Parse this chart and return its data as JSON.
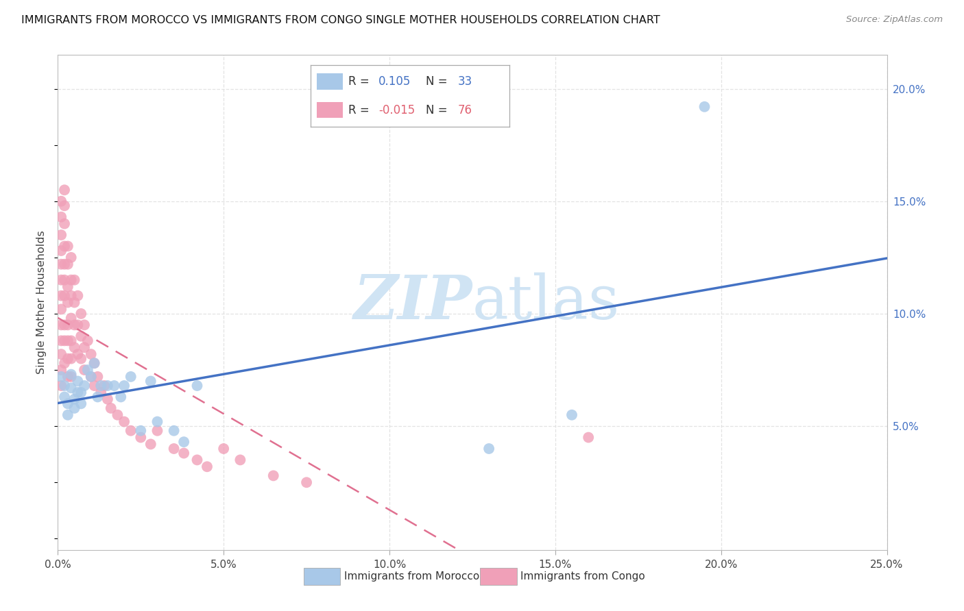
{
  "title": "IMMIGRANTS FROM MOROCCO VS IMMIGRANTS FROM CONGO SINGLE MOTHER HOUSEHOLDS CORRELATION CHART",
  "source": "Source: ZipAtlas.com",
  "ylabel_left": "Single Mother Households",
  "xlim": [
    0.0,
    0.25
  ],
  "ylim": [
    -0.005,
    0.215
  ],
  "xticks": [
    0.0,
    0.05,
    0.1,
    0.15,
    0.2,
    0.25
  ],
  "yticks_right": [
    0.05,
    0.1,
    0.15,
    0.2
  ],
  "background_color": "#ffffff",
  "morocco_color": "#a8c8e8",
  "congo_color": "#f0a0b8",
  "trend_blue_color": "#4472c4",
  "trend_pink_color": "#e07090",
  "watermark_color": "#d0e4f4",
  "morocco_scatter_x": [
    0.001,
    0.002,
    0.002,
    0.003,
    0.003,
    0.004,
    0.004,
    0.005,
    0.005,
    0.006,
    0.006,
    0.007,
    0.007,
    0.008,
    0.009,
    0.01,
    0.011,
    0.012,
    0.013,
    0.015,
    0.017,
    0.019,
    0.02,
    0.022,
    0.025,
    0.028,
    0.03,
    0.035,
    0.038,
    0.042,
    0.13,
    0.155,
    0.195
  ],
  "morocco_scatter_y": [
    0.072,
    0.068,
    0.063,
    0.06,
    0.055,
    0.067,
    0.073,
    0.058,
    0.062,
    0.065,
    0.07,
    0.06,
    0.065,
    0.068,
    0.075,
    0.072,
    0.078,
    0.063,
    0.068,
    0.068,
    0.068,
    0.063,
    0.068,
    0.072,
    0.048,
    0.07,
    0.052,
    0.048,
    0.043,
    0.068,
    0.04,
    0.055,
    0.192
  ],
  "congo_scatter_x": [
    0.001,
    0.001,
    0.001,
    0.001,
    0.001,
    0.001,
    0.001,
    0.001,
    0.001,
    0.001,
    0.001,
    0.001,
    0.001,
    0.002,
    0.002,
    0.002,
    0.002,
    0.002,
    0.002,
    0.002,
    0.002,
    0.002,
    0.002,
    0.003,
    0.003,
    0.003,
    0.003,
    0.003,
    0.003,
    0.003,
    0.003,
    0.004,
    0.004,
    0.004,
    0.004,
    0.004,
    0.004,
    0.004,
    0.005,
    0.005,
    0.005,
    0.005,
    0.006,
    0.006,
    0.006,
    0.007,
    0.007,
    0.007,
    0.008,
    0.008,
    0.008,
    0.009,
    0.01,
    0.01,
    0.011,
    0.011,
    0.012,
    0.013,
    0.014,
    0.015,
    0.016,
    0.018,
    0.02,
    0.022,
    0.025,
    0.028,
    0.03,
    0.035,
    0.038,
    0.042,
    0.045,
    0.05,
    0.055,
    0.065,
    0.075,
    0.16
  ],
  "congo_scatter_y": [
    0.15,
    0.143,
    0.135,
    0.128,
    0.122,
    0.115,
    0.108,
    0.102,
    0.095,
    0.088,
    0.082,
    0.075,
    0.068,
    0.155,
    0.148,
    0.14,
    0.13,
    0.122,
    0.115,
    0.108,
    0.095,
    0.088,
    0.078,
    0.13,
    0.122,
    0.112,
    0.105,
    0.095,
    0.088,
    0.08,
    0.072,
    0.125,
    0.115,
    0.108,
    0.098,
    0.088,
    0.08,
    0.072,
    0.115,
    0.105,
    0.095,
    0.085,
    0.108,
    0.095,
    0.082,
    0.1,
    0.09,
    0.08,
    0.095,
    0.085,
    0.075,
    0.088,
    0.082,
    0.072,
    0.078,
    0.068,
    0.072,
    0.065,
    0.068,
    0.062,
    0.058,
    0.055,
    0.052,
    0.048,
    0.045,
    0.042,
    0.048,
    0.04,
    0.038,
    0.035,
    0.032,
    0.04,
    0.035,
    0.028,
    0.025,
    0.045
  ],
  "grid_color": "#e0e0e0"
}
